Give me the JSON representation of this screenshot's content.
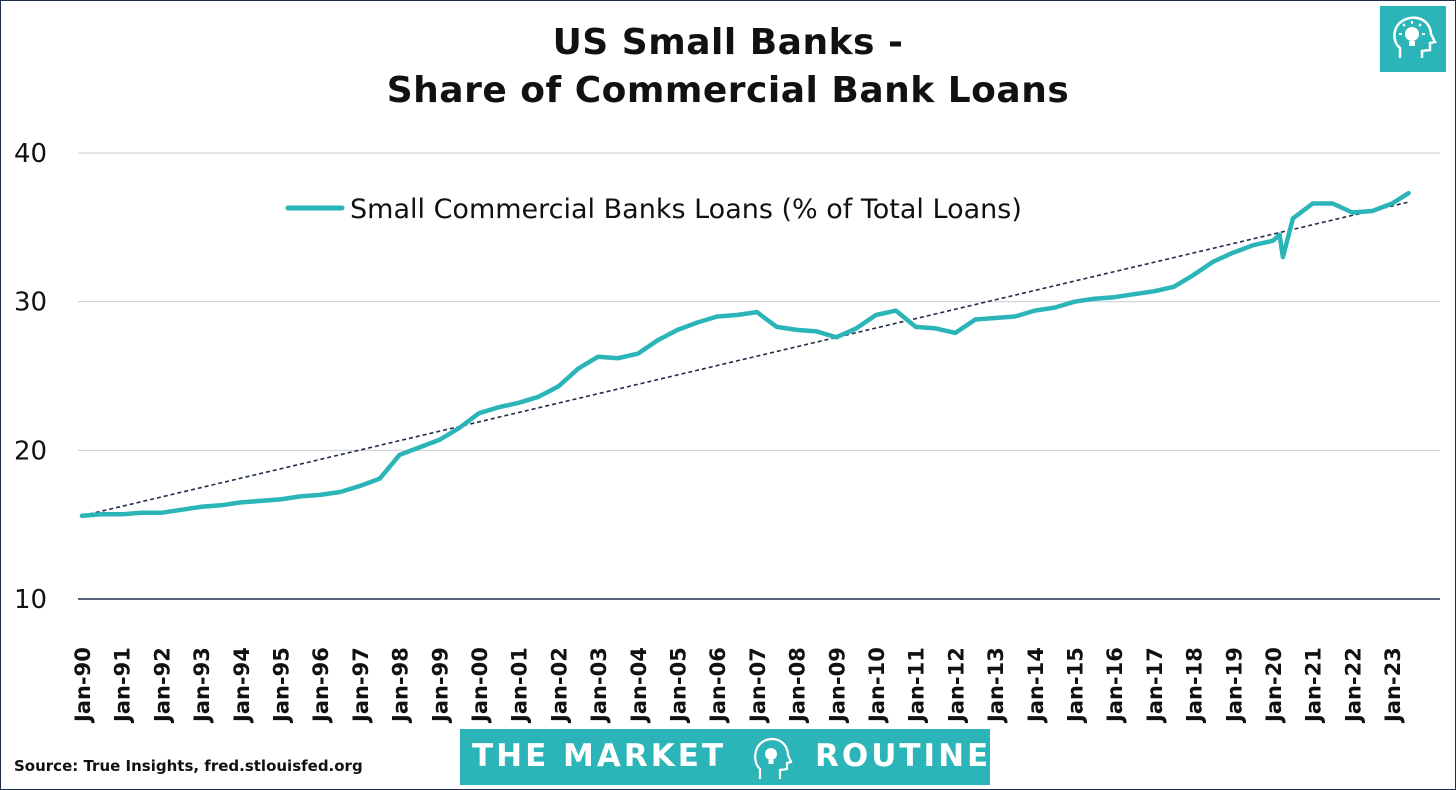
{
  "title": {
    "line1": "US Small Banks -",
    "line2": "Share of Commercial Bank Loans"
  },
  "source": "Source: True Insights, fred.stlouisfed.org",
  "banner": {
    "word1": "THE MARKET",
    "word2": "ROUTINE",
    "icon": "head-lightbulb-icon"
  },
  "logo_icon": "head-lightbulb-icon",
  "colors": {
    "series": "#2bb5b8",
    "trend": "#1f2d4a",
    "grid": "#c8ccd2",
    "brand": "#2bb5b8"
  },
  "chart_data": {
    "type": "line",
    "title": "US Small Banks - Share of Commercial Bank Loans",
    "xlabel": "",
    "ylabel": "",
    "ylim": [
      10,
      40
    ],
    "yticks": [
      "10",
      "20",
      "30",
      "40"
    ],
    "xticks": [
      "Jan-90",
      "Jan-91",
      "Jan-92",
      "Jan-93",
      "Jan-94",
      "Jan-95",
      "Jan-96",
      "Jan-97",
      "Jan-98",
      "Jan-99",
      "Jan-00",
      "Jan-01",
      "Jan-02",
      "Jan-03",
      "Jan-04",
      "Jan-05",
      "Jan-06",
      "Jan-07",
      "Jan-08",
      "Jan-09",
      "Jan-10",
      "Jan-11",
      "Jan-12",
      "Jan-13",
      "Jan-14",
      "Jan-15",
      "Jan-16",
      "Jan-17",
      "Jan-18",
      "Jan-19",
      "Jan-20",
      "Jan-21",
      "Jan-22",
      "Jan-23"
    ],
    "grid": "horizontal",
    "legend": {
      "position": "top-left",
      "entries": [
        "Small Commercial Banks Loans (% of Total Loans)"
      ]
    },
    "series": [
      {
        "name": "Small Commercial Banks Loans (% of Total Loans)",
        "x": [
          "1990-01",
          "1990-07",
          "1991-01",
          "1991-07",
          "1992-01",
          "1992-07",
          "1993-01",
          "1993-07",
          "1994-01",
          "1994-07",
          "1995-01",
          "1995-07",
          "1996-01",
          "1996-07",
          "1997-01",
          "1997-07",
          "1998-01",
          "1998-07",
          "1999-01",
          "1999-07",
          "2000-01",
          "2000-07",
          "2001-01",
          "2001-07",
          "2002-01",
          "2002-07",
          "2003-01",
          "2003-07",
          "2004-01",
          "2004-07",
          "2005-01",
          "2005-07",
          "2006-01",
          "2006-07",
          "2007-01",
          "2007-07",
          "2008-01",
          "2008-07",
          "2009-01",
          "2009-07",
          "2010-01",
          "2010-07",
          "2011-01",
          "2011-07",
          "2012-01",
          "2012-07",
          "2013-01",
          "2013-07",
          "2014-01",
          "2014-07",
          "2015-01",
          "2015-07",
          "2016-01",
          "2016-07",
          "2017-01",
          "2017-07",
          "2018-01",
          "2018-07",
          "2019-01",
          "2019-07",
          "2020-01",
          "2020-03",
          "2020-04",
          "2020-07",
          "2021-01",
          "2021-07",
          "2022-01",
          "2022-07",
          "2023-01",
          "2023-06"
        ],
        "y": [
          15.6,
          15.7,
          15.7,
          15.8,
          15.8,
          16.0,
          16.2,
          16.3,
          16.5,
          16.6,
          16.7,
          16.9,
          17.0,
          17.2,
          17.6,
          18.1,
          19.7,
          20.2,
          20.7,
          21.5,
          22.5,
          22.9,
          23.2,
          23.6,
          24.3,
          25.5,
          26.3,
          26.2,
          26.5,
          27.4,
          28.1,
          28.6,
          29.0,
          29.1,
          29.3,
          28.3,
          28.1,
          28.0,
          27.6,
          28.2,
          29.1,
          29.4,
          28.3,
          28.2,
          27.9,
          28.8,
          28.9,
          29.0,
          29.4,
          29.6,
          30.0,
          30.2,
          30.3,
          30.5,
          30.7,
          31.0,
          31.8,
          32.7,
          33.3,
          33.8,
          34.1,
          34.5,
          33.0,
          35.6,
          36.6,
          36.6,
          36.0,
          36.1,
          36.6,
          37.3
        ]
      },
      {
        "name": "",
        "style": "dashed-trendline",
        "x": [
          "1990-01",
          "2023-06"
        ],
        "y": [
          15.6,
          36.7
        ]
      }
    ]
  }
}
